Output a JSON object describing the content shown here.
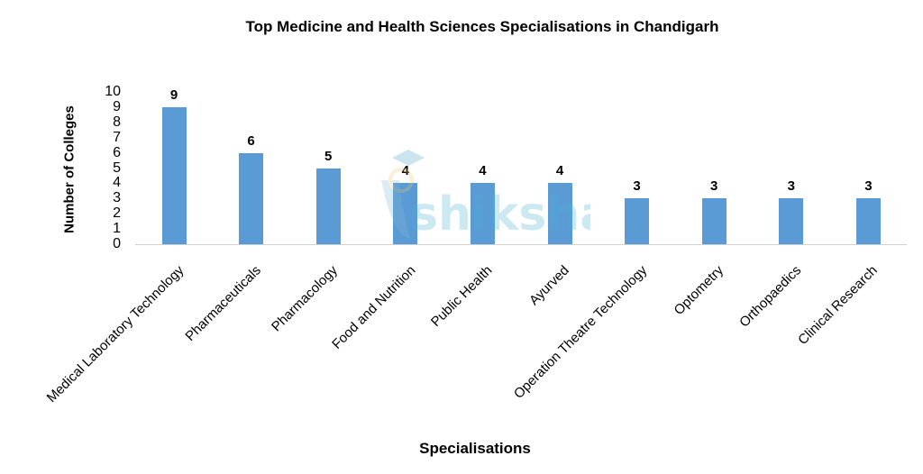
{
  "chart_data": {
    "type": "bar",
    "title": "Top Medicine and Health Sciences Specialisations in Chandigarh",
    "xlabel": "Specialisations",
    "ylabel": "Number of Colleges",
    "ylim": [
      0,
      10
    ],
    "yticks": [
      "0",
      "1",
      "2",
      "3",
      "4",
      "5",
      "6",
      "7",
      "8",
      "9",
      "10"
    ],
    "grid": false,
    "legend": null,
    "categories": [
      "Medical Laboratory Technology",
      "Pharmaceuticals",
      "Pharmacology",
      "Food and Nutrition",
      "Public Health",
      "Ayurved",
      "Operation Theatre Technology",
      "Optometry",
      "Orthopaedics",
      "Clinical Research"
    ],
    "values": [
      9,
      6,
      5,
      4,
      4,
      4,
      3,
      3,
      3,
      3
    ],
    "bar_color": "#5b9bd5",
    "watermark": "shiksha"
  }
}
